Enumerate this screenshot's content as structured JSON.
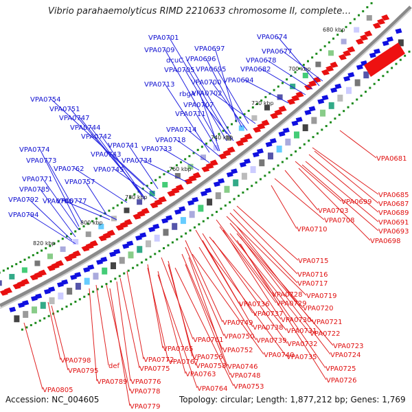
{
  "title": "Vibrio parahaemolyticus RIMD 2210633 chromosome II, complete…",
  "footer": {
    "accession": "Accession: NC_004605",
    "summary": "Topology: circular; Length: 1,877,212 bp; Genes: 1,769"
  },
  "colors": {
    "forward_label": "#1010d0",
    "reverse_label": "#e01010",
    "forward_gene": "#1010e0",
    "reverse_gene": "#e81010",
    "backbone": "#888888",
    "tick_dot": "#1a8a1a"
  },
  "ticks": [
    "680 kbp",
    "700 kbp",
    "720 kbp",
    "740 kbp",
    "760 kbp",
    "780 kbp",
    "800 kbp",
    "820 kbp"
  ],
  "blue_labels": [
    "VPA0701",
    "VPA0697",
    "VPA0709",
    "dcuC",
    "VPA0696",
    "VPA0705",
    "VPA0695",
    "VPA0713",
    "VPA0700",
    "rbgA",
    "VPA0702",
    "VPA0707",
    "VPA0711",
    "VPA0714",
    "VPA0718",
    "VPA0733",
    "VPA0734",
    "VPA0754",
    "VPA0751",
    "VPA0747",
    "VPA0744",
    "VPA0742",
    "VPA0741",
    "VPA0743",
    "VPA0745",
    "VPA0774",
    "VPA0773",
    "VPA0762",
    "VPA0771",
    "VPA0757",
    "VPA0785",
    "VPA0766",
    "VPA0792",
    "VPA0777",
    "VPA0794",
    "VPA0674",
    "VPA0677",
    "VPA0678",
    "VPA0682",
    "VPA0694"
  ],
  "red_labels": [
    "VPA0681",
    "VPA0685",
    "VPA0687",
    "VPA0699",
    "VPA0689",
    "VPA0703",
    "VPA0691",
    "VPA0708",
    "VPA0693",
    "VPA0710",
    "VPA0698",
    "VPA0715",
    "VPA0716",
    "VPA0717",
    "VPA0719",
    "VPA0728",
    "VPA0736",
    "VPA0729",
    "VPA0720",
    "VPA0737",
    "VPA0730",
    "VPA0721",
    "VPA0749",
    "VPA0738",
    "VPA0722",
    "VPA0750",
    "VPA0731",
    "VPA0739",
    "VPA0732",
    "VPA0723",
    "VPA0761",
    "VPA0724",
    "VPA0740",
    "VPA0735",
    "VPA0765",
    "VPA0752",
    "VPA0756",
    "VPA0746",
    "VPA0725",
    "VPA0772",
    "VPA0767",
    "VPA0758",
    "VPA0748",
    "VPA0798",
    "VPA0775",
    "VPA0763",
    "VPA0726",
    "VPA0795",
    "def",
    "VPA0776",
    "VPA0753",
    "VPA0789",
    "VPA0764",
    "VPA0778",
    "VPA0805",
    "VPA0779"
  ]
}
